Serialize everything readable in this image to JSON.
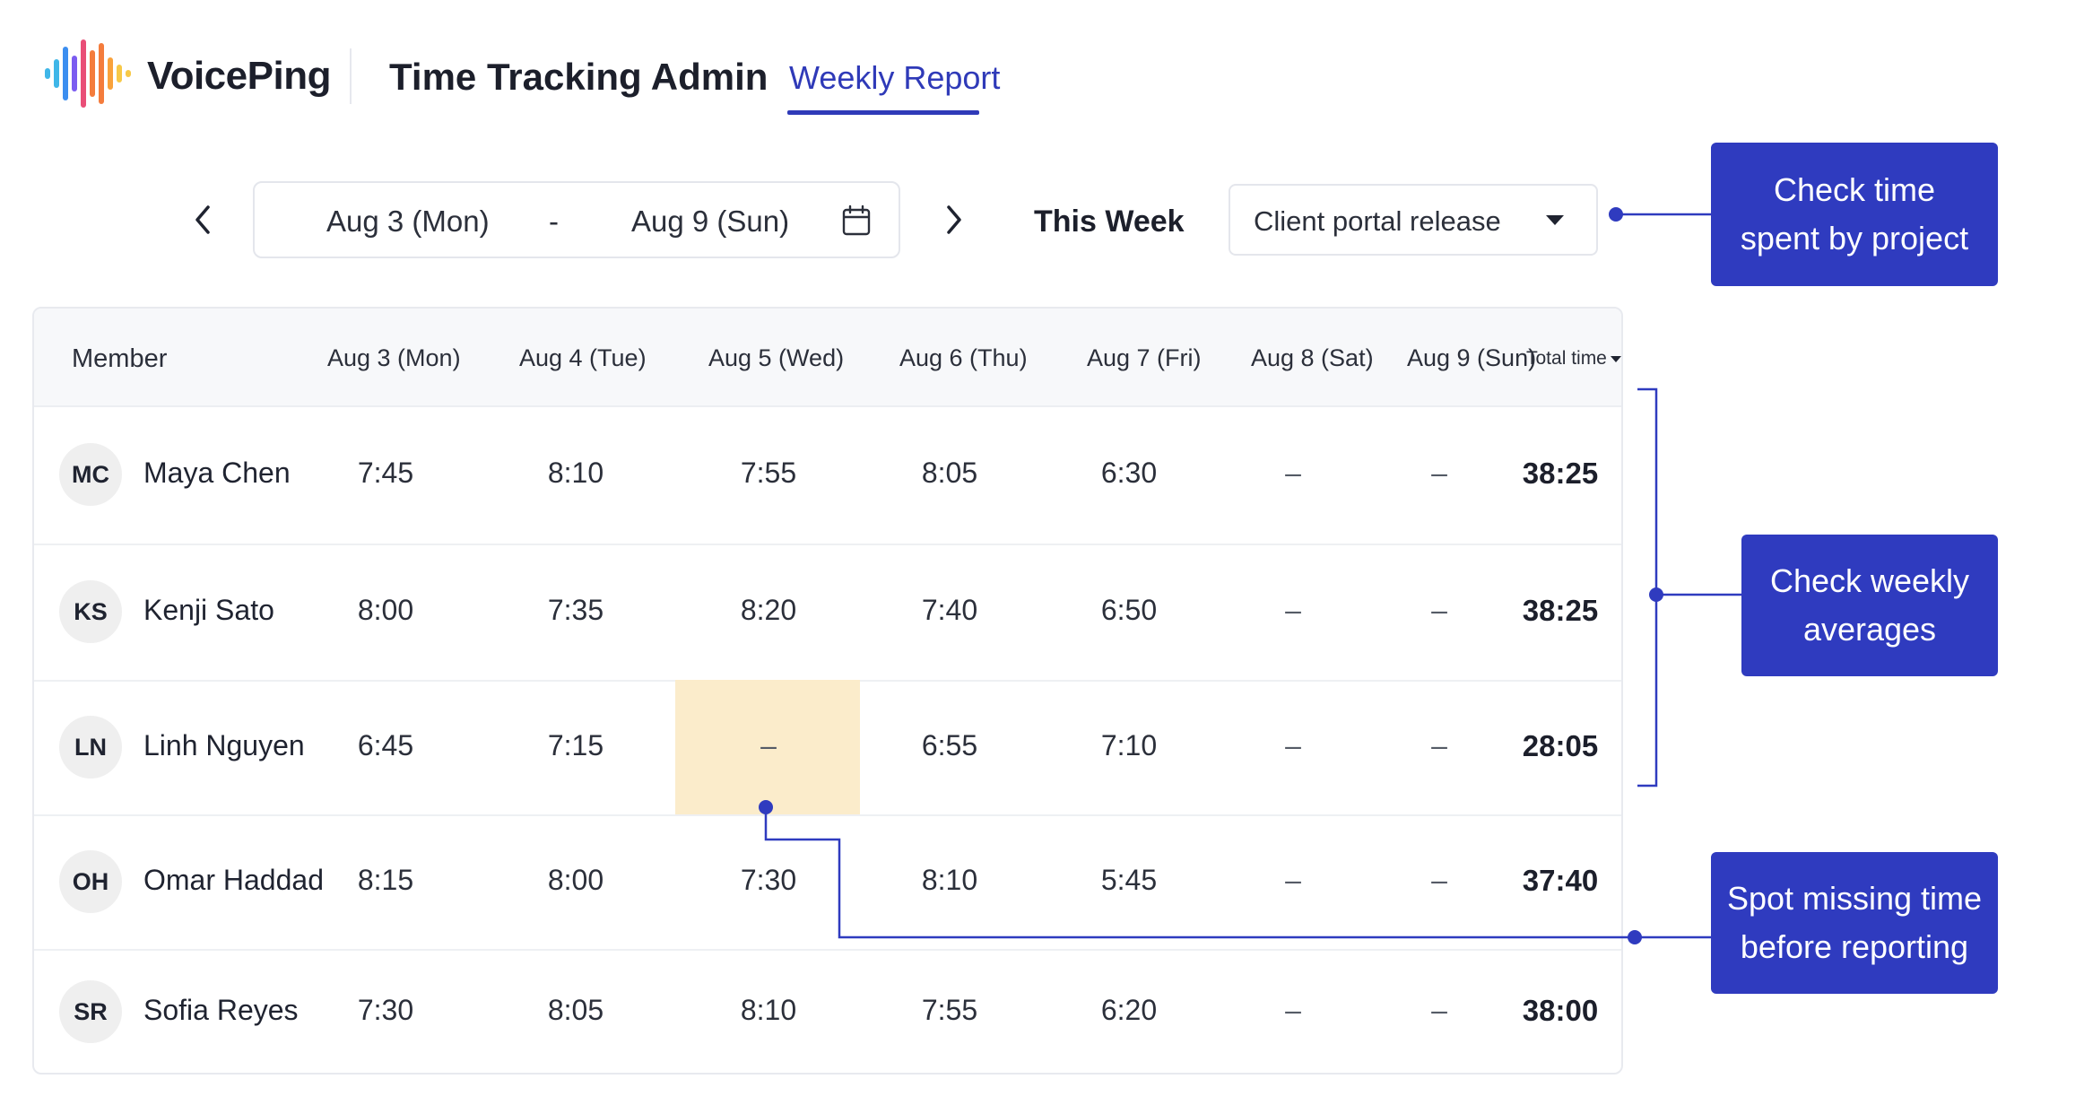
{
  "header": {
    "brand": "VoicePing",
    "app_title": "Time Tracking Admin",
    "active_tab": "Weekly Report"
  },
  "controls": {
    "date_start": "Aug 3 (Mon)",
    "date_separator": "-",
    "date_end": "Aug 9 (Sun)",
    "this_week_label": "This Week",
    "project_value": "Client portal release"
  },
  "table": {
    "member_header": "Member",
    "day_headers": [
      "Aug 3 (Mon)",
      "Aug 4 (Tue)",
      "Aug 5 (Wed)",
      "Aug 6 (Thu)",
      "Aug 7 (Fri)",
      "Aug 8 (Sat)",
      "Aug 9 (Sun)"
    ],
    "total_header": "Total time",
    "rows": [
      {
        "initials": "MC",
        "name": "Maya Chen",
        "days": [
          "7:45",
          "8:10",
          "7:55",
          "8:05",
          "6:30",
          "–",
          "–"
        ],
        "total": "38:25"
      },
      {
        "initials": "KS",
        "name": "Kenji Sato",
        "days": [
          "8:00",
          "7:35",
          "8:20",
          "7:40",
          "6:50",
          "–",
          "–"
        ],
        "total": "38:25"
      },
      {
        "initials": "LN",
        "name": "Linh Nguyen",
        "days": [
          "6:45",
          "7:15",
          "–",
          "6:55",
          "7:10",
          "–",
          "–"
        ],
        "total": "28:05"
      },
      {
        "initials": "OH",
        "name": "Omar Haddad",
        "days": [
          "8:15",
          "8:00",
          "7:30",
          "8:10",
          "5:45",
          "–",
          "–"
        ],
        "total": "37:40"
      },
      {
        "initials": "SR",
        "name": "Sofia Reyes",
        "days": [
          "7:30",
          "8:05",
          "8:10",
          "7:55",
          "6:20",
          "–",
          "–"
        ],
        "total": "38:00"
      }
    ]
  },
  "callouts": {
    "project": [
      "Check time",
      "spent by project"
    ],
    "weekly": [
      "Check weekly",
      "averages"
    ],
    "missing": [
      "Spot missing time",
      "before reporting"
    ]
  },
  "colors": {
    "accent": "#2f3ab8",
    "callout_bg": "#2f3bbf",
    "missing_highlight": "#fbeccb",
    "logo_bars": [
      "#3fb6e8",
      "#3c8ef0",
      "#7b5cf0",
      "#e94e77",
      "#f47c3c",
      "#f9a23b",
      "#f7c948"
    ]
  },
  "icons": {
    "prev": "chevron-left-icon",
    "next": "chevron-right-icon",
    "calendar": "calendar-icon",
    "dropdown": "caret-down-icon"
  }
}
